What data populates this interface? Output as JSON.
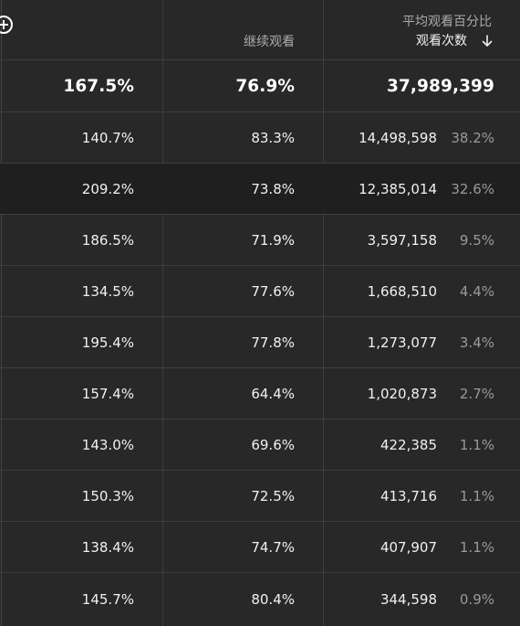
{
  "header": {
    "col1_label": "平均观看百分比",
    "col2_label": "继续观看",
    "col3_label": "观看次数",
    "sort_icon": "arrow-down-icon",
    "add_icon": "add-circle-icon"
  },
  "total": {
    "avg_view_pct": "167.5%",
    "continue_watching": "76.9%",
    "views": "37,989,399"
  },
  "rows": [
    {
      "avg_view_pct": "140.7%",
      "continue_watching": "83.3%",
      "views": "14,498,598",
      "share": "38.2%"
    },
    {
      "avg_view_pct": "209.2%",
      "continue_watching": "73.8%",
      "views": "12,385,014",
      "share": "32.6%"
    },
    {
      "avg_view_pct": "186.5%",
      "continue_watching": "71.9%",
      "views": "3,597,158",
      "share": "9.5%"
    },
    {
      "avg_view_pct": "134.5%",
      "continue_watching": "77.6%",
      "views": "1,668,510",
      "share": "4.4%"
    },
    {
      "avg_view_pct": "195.4%",
      "continue_watching": "77.8%",
      "views": "1,273,077",
      "share": "3.4%"
    },
    {
      "avg_view_pct": "157.4%",
      "continue_watching": "64.4%",
      "views": "1,020,873",
      "share": "2.7%"
    },
    {
      "avg_view_pct": "143.0%",
      "continue_watching": "69.6%",
      "views": "422,385",
      "share": "1.1%"
    },
    {
      "avg_view_pct": "150.3%",
      "continue_watching": "72.5%",
      "views": "413,716",
      "share": "1.1%"
    },
    {
      "avg_view_pct": "138.4%",
      "continue_watching": "74.7%",
      "views": "407,907",
      "share": "1.1%"
    },
    {
      "avg_view_pct": "145.7%",
      "continue_watching": "80.4%",
      "views": "344,598",
      "share": "0.9%"
    }
  ],
  "colors": {
    "background": "#282828",
    "highlight_row": "#1f1f1f",
    "divider": "#3e3e3e",
    "header_text": "#aaaaaa",
    "value_text": "#f1f1f1",
    "share_text": "#9a9a9a"
  }
}
